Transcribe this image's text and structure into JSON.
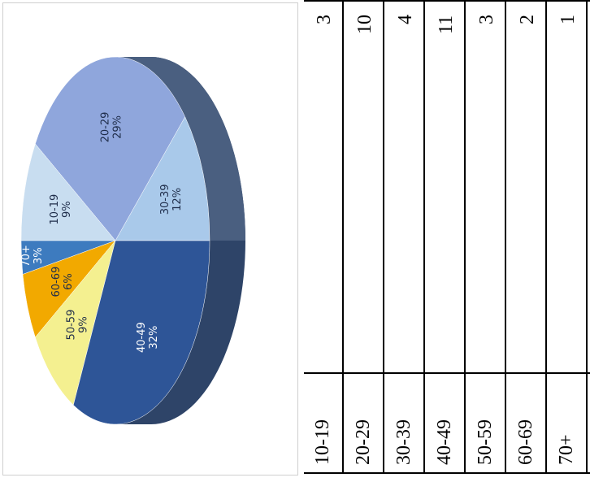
{
  "chart_data": {
    "type": "pie",
    "title": "",
    "categories": [
      "10-19",
      "20-29",
      "30-39",
      "40-49",
      "50-59",
      "60-69",
      "70+"
    ],
    "values": [
      3,
      10,
      4,
      11,
      3,
      2,
      1
    ],
    "percent_labels": [
      "9%",
      "29%",
      "12%",
      "32%",
      "9%",
      "6%",
      "3%"
    ],
    "colors": [
      "#c8ddf0",
      "#8fa6dc",
      "#a9c9ea",
      "#2e5597",
      "#f4f090",
      "#f2a900",
      "#3d7bbf"
    ],
    "label_colors": [
      "#1f2d4a",
      "#1f2d4a",
      "#1f2d4a",
      "#ffffff",
      "#1f2d4a",
      "#1f2d4a",
      "#ffffff"
    ],
    "orientation": "rotated -90deg, 3D tilted"
  },
  "table": {
    "rows": [
      {
        "age": "10-19",
        "count": "3"
      },
      {
        "age": "20-29",
        "count": "10"
      },
      {
        "age": "30-39",
        "count": "4"
      },
      {
        "age": "40-49",
        "count": "11"
      },
      {
        "age": "50-59",
        "count": "3"
      },
      {
        "age": "60-69",
        "count": "2"
      },
      {
        "age": "70+",
        "count": "1"
      }
    ]
  }
}
